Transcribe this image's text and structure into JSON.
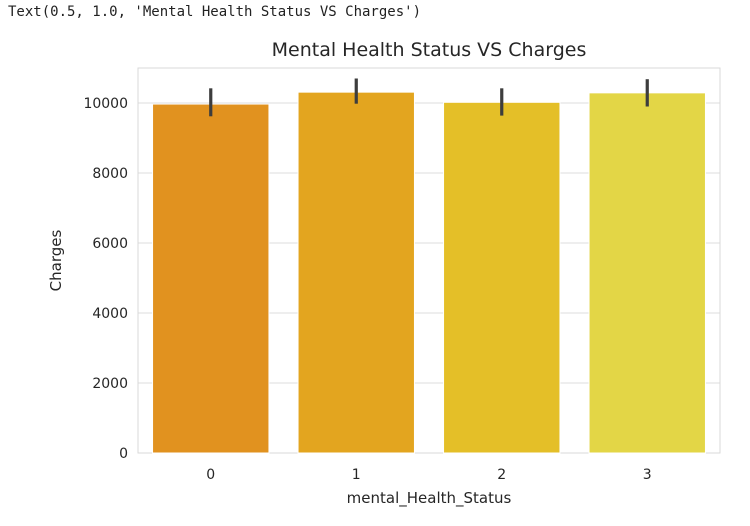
{
  "output_text": "Text(0.5, 1.0, 'Mental Health Status VS Charges')",
  "chart_data": {
    "type": "bar",
    "title": "Mental Health Status VS Charges",
    "xlabel": "mental_Health_Status",
    "ylabel": "Charges",
    "categories": [
      "0",
      "1",
      "2",
      "3"
    ],
    "values": [
      9970,
      10310,
      10020,
      10290
    ],
    "error_low": [
      9620,
      9980,
      9640,
      9900
    ],
    "error_high": [
      10420,
      10700,
      10420,
      10680
    ],
    "colors": [
      "#e1921f",
      "#e3a51f",
      "#e4bf28",
      "#e3d646"
    ],
    "ylim": [
      0,
      11000
    ],
    "yticks": [
      0,
      2000,
      4000,
      6000,
      8000,
      10000
    ],
    "ytick_labels": [
      "0",
      "2000",
      "4000",
      "6000",
      "8000",
      "10000"
    ],
    "grid": true,
    "legend": "none"
  }
}
